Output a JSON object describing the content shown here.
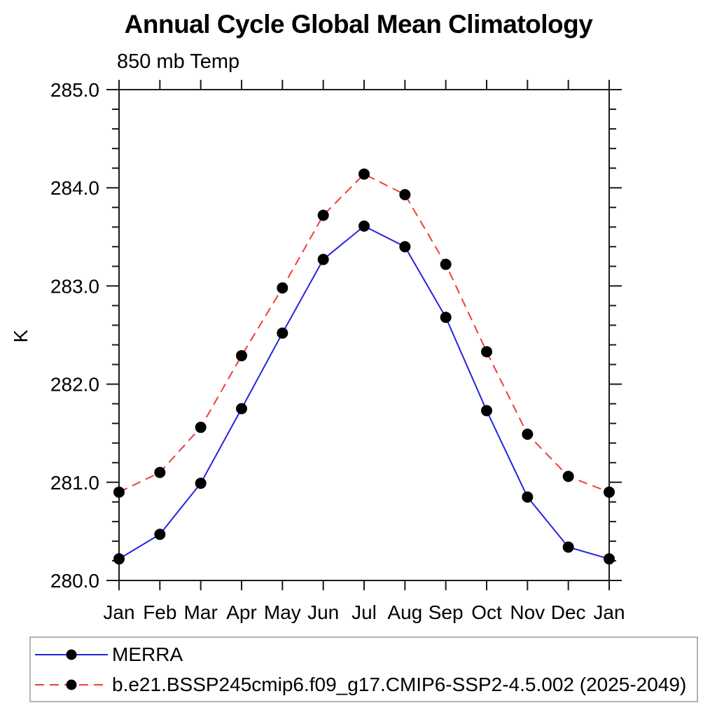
{
  "title": "Annual Cycle Global Mean Climatology",
  "subtitle": "850 mb Temp",
  "ylabel": "K",
  "chart_data": {
    "type": "line",
    "x_categories": [
      "Jan",
      "Feb",
      "Mar",
      "Apr",
      "May",
      "Jun",
      "Jul",
      "Aug",
      "Sep",
      "Oct",
      "Nov",
      "Dec",
      "Jan"
    ],
    "ylim": [
      280.0,
      285.0
    ],
    "y_major_step": 1.0,
    "y_minor_step": 0.2,
    "y_tick_labels": [
      "280.0",
      "281.0",
      "282.0",
      "283.0",
      "284.0",
      "285.0"
    ],
    "grid": false,
    "legend_position": "bottom-left",
    "axis_color": "#1a1a1a",
    "marker_color": "#000000",
    "series": [
      {
        "name": "MERRA",
        "color": "#2323e0",
        "line_style": "solid",
        "marker": "circle",
        "values": [
          280.22,
          280.47,
          280.99,
          281.75,
          282.52,
          283.27,
          283.61,
          283.4,
          282.68,
          281.73,
          280.85,
          280.34,
          280.22
        ]
      },
      {
        "name": "b.e21.BSSP245cmip6.f09_g17.CMIP6-SSP2-4.5.002 (2025-2049)",
        "color": "#f03c3c",
        "line_style": "dashed",
        "marker": "circle",
        "values": [
          280.9,
          281.1,
          281.56,
          282.29,
          282.98,
          283.72,
          284.14,
          283.93,
          283.22,
          282.33,
          281.49,
          281.06,
          280.9
        ]
      }
    ]
  }
}
